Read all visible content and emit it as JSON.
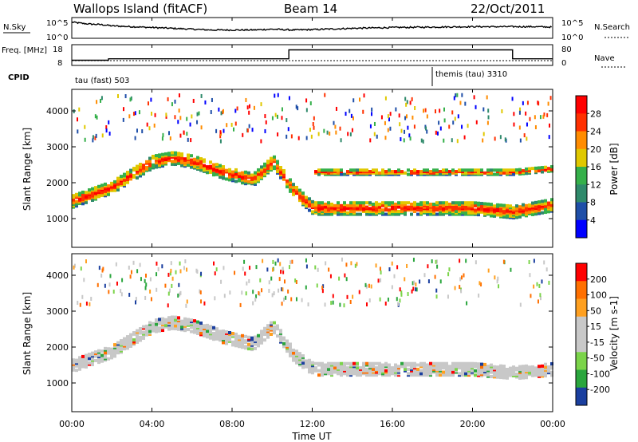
{
  "header": {
    "station": "Wallops Island (fitACF)",
    "beam": "Beam 14",
    "date": "22/Oct/2011"
  },
  "chart_data": [
    {
      "type": "line",
      "panel": "noise",
      "left_label": "N.Sky",
      "right_label": "N.Search",
      "left_ticks": [
        "10^5",
        "10^0"
      ],
      "right_ticks": [
        "10^5",
        "10^0"
      ],
      "x": [
        "00:00",
        "00:30",
        "01:00",
        "01:30",
        "02:00",
        "02:30",
        "03:00",
        "04:00",
        "05:00",
        "06:00",
        "07:00",
        "08:00",
        "09:00",
        "10:00",
        "11:00",
        "12:00",
        "14:00",
        "16:00",
        "18:00",
        "20:00",
        "22:00",
        "23:00",
        "24:00"
      ],
      "series": [
        {
          "values": [
            3.9,
            3.6,
            3.4,
            3.3,
            3.0,
            2.9,
            2.8,
            2.6,
            2.4,
            2.2,
            2.0,
            2.0,
            2.0,
            2.2,
            2.0,
            2.1,
            2.4,
            2.6,
            2.7,
            2.8,
            2.8,
            2.8,
            2.7
          ]
        }
      ],
      "ylim": [
        0,
        5
      ]
    },
    {
      "type": "line",
      "panel": "frequency",
      "left_label": "Freq. [MHz]",
      "right_label": "Nave",
      "left_ticks": [
        "18",
        "8"
      ],
      "right_ticks": [
        "80",
        "0"
      ],
      "x": [
        "00:00",
        "01:50",
        "10:50",
        "22:00",
        "24:00"
      ],
      "series": [
        {
          "values": [
            10.5,
            11.2,
            15.5,
            11.2,
            11.2
          ]
        }
      ],
      "ylim": [
        8,
        18
      ]
    },
    {
      "type": "table",
      "panel": "cpid",
      "label": "CPID",
      "segments": [
        {
          "name": "tau (fast) 503",
          "start": "00:00",
          "end": "18:00"
        },
        {
          "name": "themis (tau) 3310",
          "start": "18:00",
          "end": "24:00"
        }
      ]
    },
    {
      "type": "heatmap",
      "panel": "power",
      "ylabel": "Slant Range [km]",
      "y_ticks": [
        1000,
        2000,
        3000,
        4000
      ],
      "ylim": [
        200,
        4600
      ],
      "colorbar": {
        "label": "Power [dB]",
        "ticks": [
          "4",
          "8",
          "12",
          "16",
          "20",
          "24",
          "28"
        ]
      },
      "features": [
        {
          "x": [
            "00:00",
            "02:00",
            "04:00",
            "05:00",
            "06:00",
            "07:30",
            "09:00",
            "10:00",
            "11:00",
            "12:00",
            "14:00",
            "16:00",
            "18:00",
            "20:00",
            "22:00",
            "24:00"
          ],
          "range_km": [
            1500,
            1900,
            2600,
            2700,
            2600,
            2300,
            2100,
            2600,
            1800,
            1300,
            1300,
            1300,
            1300,
            1300,
            1200,
            1400
          ]
        },
        {
          "x": [
            "12:00",
            "14:00",
            "16:00",
            "18:00",
            "20:00",
            "22:00",
            "24:00"
          ],
          "range_km": [
            2300,
            2300,
            2300,
            2300,
            2300,
            2300,
            2400
          ]
        }
      ]
    },
    {
      "type": "heatmap",
      "panel": "velocity",
      "ylabel": "Slant Range [km]",
      "y_ticks": [
        1000,
        2000,
        3000,
        4000
      ],
      "ylim": [
        200,
        4600
      ],
      "colorbar": {
        "label": "Velocity [m s-1]",
        "ticks": [
          "200",
          "100",
          "50",
          "15",
          "-15",
          "-50",
          "-100",
          "-200"
        ]
      },
      "features": [
        {
          "x": [
            "00:00",
            "02:00",
            "04:00",
            "05:00",
            "06:00",
            "07:30",
            "09:00",
            "10:00",
            "11:00",
            "12:00",
            "14:00",
            "16:00",
            "18:00",
            "20:00",
            "22:00",
            "24:00"
          ],
          "range_km": [
            1500,
            1900,
            2600,
            2700,
            2600,
            2300,
            2100,
            2600,
            1800,
            1400,
            1400,
            1400,
            1400,
            1400,
            1300,
            1400
          ]
        }
      ]
    }
  ],
  "x_axis": {
    "label": "Time UT",
    "ticks": [
      "00:00",
      "04:00",
      "08:00",
      "12:00",
      "16:00",
      "20:00",
      "00:00"
    ]
  },
  "colors": {
    "power_scale": [
      "#0000ff",
      "#1f4fa8",
      "#2f8a6b",
      "#35b04a",
      "#e0c800",
      "#ff8c00",
      "#ff3000",
      "#ff0000"
    ],
    "velocity_scale": [
      "#1a3f9f",
      "#2aa63d",
      "#7bd44a",
      "#c8c8c8",
      "#c8c8c8",
      "#ffa020",
      "#ff7000",
      "#ff0000"
    ]
  }
}
